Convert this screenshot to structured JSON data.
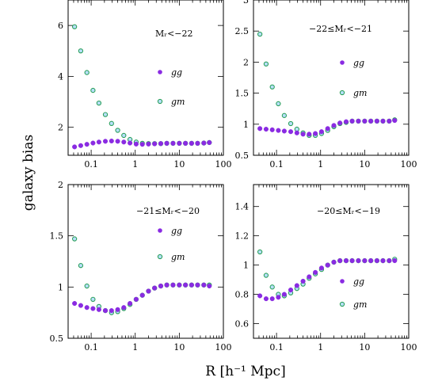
{
  "figure": {
    "ylabel": "galaxy bias",
    "xlabel": "R [h⁻¹ Mpc]"
  },
  "colors": {
    "gg": "#8a2be2",
    "gm": "#2ca05a",
    "gm_fill": "#b8e0ff",
    "text": "#000000"
  },
  "chart_data": [
    {
      "type": "scatter",
      "panel": "top-left",
      "label": "Mᵣ<−22",
      "xscale": "log",
      "xlim": [
        0.03,
        100
      ],
      "ylim": [
        0.9,
        7
      ],
      "xticks": [
        "0.1",
        "1",
        "10",
        "100"
      ],
      "yticks": [
        "2",
        "4",
        "6"
      ],
      "legend": [
        "gg",
        "gm"
      ],
      "legend_position": "right",
      "series": [
        {
          "name": "gg",
          "marker": "filled-circle",
          "x": [
            0.042,
            0.058,
            0.08,
            0.11,
            0.15,
            0.21,
            0.29,
            0.4,
            0.55,
            0.76,
            1.05,
            1.45,
            2.0,
            2.75,
            3.8,
            5.2,
            7.2,
            10,
            13.8,
            19,
            26,
            36,
            48
          ],
          "y": [
            1.23,
            1.28,
            1.33,
            1.38,
            1.42,
            1.45,
            1.46,
            1.45,
            1.42,
            1.38,
            1.34,
            1.33,
            1.34,
            1.35,
            1.36,
            1.37,
            1.37,
            1.37,
            1.37,
            1.37,
            1.37,
            1.38,
            1.4
          ]
        },
        {
          "name": "gm",
          "marker": "open-circle",
          "x": [
            0.042,
            0.058,
            0.08,
            0.11,
            0.15,
            0.21,
            0.29,
            0.4,
            0.55,
            0.76,
            1.05,
            1.45,
            2.0,
            2.75,
            3.8,
            5.2,
            7.2,
            10,
            13.8,
            19,
            26,
            36,
            48
          ],
          "y": [
            5.95,
            5.0,
            4.15,
            3.45,
            2.95,
            2.5,
            2.15,
            1.88,
            1.68,
            1.52,
            1.42,
            1.37,
            1.36,
            1.36,
            1.36,
            1.37,
            1.37,
            1.37,
            1.37,
            1.37,
            1.37,
            1.38,
            1.4
          ]
        }
      ]
    },
    {
      "type": "scatter",
      "panel": "top-right",
      "label": "−22≤Mᵣ<−21",
      "xscale": "log",
      "xlim": [
        0.03,
        100
      ],
      "ylim": [
        0.5,
        3
      ],
      "xticks": [
        "0.1",
        "1",
        "10",
        "100"
      ],
      "yticks": [
        "0.5",
        "1",
        "1.5",
        "2",
        "2.5",
        "3"
      ],
      "legend": [
        "gg",
        "gm"
      ],
      "legend_position": "right",
      "series": [
        {
          "name": "gg",
          "marker": "filled-circle",
          "x": [
            0.042,
            0.058,
            0.08,
            0.11,
            0.15,
            0.21,
            0.29,
            0.4,
            0.55,
            0.76,
            1.05,
            1.45,
            2.0,
            2.75,
            3.8,
            5.2,
            7.2,
            10,
            13.8,
            19,
            26,
            36,
            48
          ],
          "y": [
            0.93,
            0.92,
            0.91,
            0.9,
            0.89,
            0.88,
            0.86,
            0.84,
            0.84,
            0.85,
            0.88,
            0.93,
            0.98,
            1.02,
            1.04,
            1.05,
            1.05,
            1.05,
            1.05,
            1.05,
            1.05,
            1.05,
            1.06
          ]
        },
        {
          "name": "gm",
          "marker": "open-circle",
          "x": [
            0.042,
            0.058,
            0.08,
            0.11,
            0.15,
            0.21,
            0.29,
            0.4,
            0.55,
            0.76,
            1.05,
            1.45,
            2.0,
            2.75,
            3.8,
            5.2,
            7.2,
            10,
            13.8,
            19,
            26,
            36,
            48
          ],
          "y": [
            2.45,
            1.97,
            1.6,
            1.33,
            1.14,
            1.01,
            0.92,
            0.86,
            0.82,
            0.82,
            0.85,
            0.9,
            0.96,
            1.01,
            1.03,
            1.05,
            1.05,
            1.05,
            1.05,
            1.05,
            1.05,
            1.05,
            1.07
          ]
        }
      ]
    },
    {
      "type": "scatter",
      "panel": "bottom-left",
      "label": "−21≤Mᵣ<−20",
      "xscale": "log",
      "xlim": [
        0.03,
        100
      ],
      "ylim": [
        0.5,
        2
      ],
      "xticks": [
        "0.1",
        "1",
        "10",
        "100"
      ],
      "yticks": [
        "0.5",
        "1",
        "1.5",
        "2"
      ],
      "legend": [
        "gg",
        "gm"
      ],
      "legend_position": "right",
      "series": [
        {
          "name": "gg",
          "marker": "filled-circle",
          "x": [
            0.042,
            0.058,
            0.08,
            0.11,
            0.15,
            0.21,
            0.29,
            0.4,
            0.55,
            0.76,
            1.05,
            1.45,
            2.0,
            2.75,
            3.8,
            5.2,
            7.2,
            10,
            13.8,
            19,
            26,
            36,
            48
          ],
          "y": [
            0.84,
            0.82,
            0.8,
            0.79,
            0.78,
            0.77,
            0.77,
            0.78,
            0.8,
            0.84,
            0.88,
            0.92,
            0.96,
            0.99,
            1.01,
            1.02,
            1.02,
            1.02,
            1.02,
            1.02,
            1.02,
            1.02,
            1.01
          ]
        },
        {
          "name": "gm",
          "marker": "open-circle",
          "x": [
            0.042,
            0.058,
            0.08,
            0.11,
            0.15,
            0.21,
            0.29,
            0.4,
            0.55,
            0.76,
            1.05,
            1.45,
            2.0,
            2.75,
            3.8,
            5.2,
            7.2,
            10,
            13.8,
            19,
            26,
            36,
            48
          ],
          "y": [
            1.47,
            1.21,
            1.01,
            0.88,
            0.81,
            0.77,
            0.75,
            0.76,
            0.79,
            0.83,
            0.88,
            0.92,
            0.96,
            0.99,
            1.01,
            1.02,
            1.02,
            1.02,
            1.02,
            1.02,
            1.02,
            1.02,
            1.02
          ]
        }
      ]
    },
    {
      "type": "scatter",
      "panel": "bottom-right",
      "label": "−20≤Mᵣ<−19",
      "xscale": "log",
      "xlim": [
        0.03,
        100
      ],
      "ylim": [
        0.5,
        1.55
      ],
      "xticks": [
        "0.1",
        "1",
        "10",
        "100"
      ],
      "yticks": [
        "0.6",
        "0.8",
        "1",
        "1.2",
        "1.4"
      ],
      "legend": [
        "gg",
        "gm"
      ],
      "legend_position": "right",
      "series": [
        {
          "name": "gg",
          "marker": "filled-circle",
          "x": [
            0.042,
            0.058,
            0.08,
            0.11,
            0.15,
            0.21,
            0.29,
            0.4,
            0.55,
            0.76,
            1.05,
            1.45,
            2.0,
            2.75,
            3.8,
            5.2,
            7.2,
            10,
            13.8,
            19,
            26,
            36,
            48
          ],
          "y": [
            0.79,
            0.77,
            0.77,
            0.78,
            0.8,
            0.83,
            0.86,
            0.89,
            0.92,
            0.95,
            0.98,
            1.0,
            1.02,
            1.03,
            1.03,
            1.03,
            1.03,
            1.03,
            1.03,
            1.03,
            1.03,
            1.03,
            1.03
          ]
        },
        {
          "name": "gm",
          "marker": "open-circle",
          "x": [
            0.042,
            0.058,
            0.08,
            0.11,
            0.15,
            0.21,
            0.29,
            0.4,
            0.55,
            0.76,
            1.05,
            1.45,
            2.0,
            2.75,
            3.8,
            5.2,
            7.2,
            10,
            13.8,
            19,
            26,
            36,
            48
          ],
          "y": [
            1.09,
            0.93,
            0.85,
            0.8,
            0.79,
            0.81,
            0.84,
            0.87,
            0.91,
            0.94,
            0.97,
            1.0,
            1.02,
            1.03,
            1.03,
            1.03,
            1.03,
            1.03,
            1.03,
            1.03,
            1.03,
            1.03,
            1.04
          ]
        }
      ]
    }
  ]
}
